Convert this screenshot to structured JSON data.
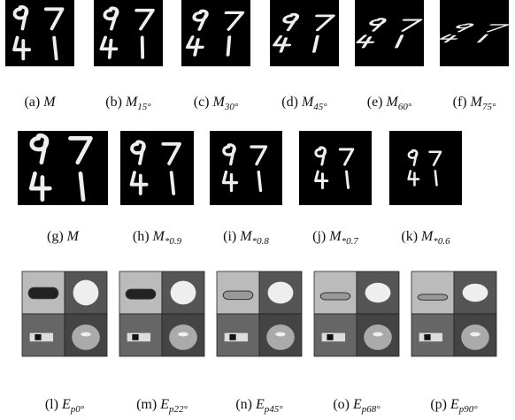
{
  "figure": {
    "rows": [
      {
        "panels": [
          {
            "label": "(a)",
            "symbol": "M"
          },
          {
            "label": "(b)",
            "symbol": "M",
            "sub": "15°"
          },
          {
            "label": "(c)",
            "symbol": "M",
            "sub": "30°"
          },
          {
            "label": "(d)",
            "symbol": "M",
            "sub": "45°"
          },
          {
            "label": "(e)",
            "symbol": "M",
            "sub": "60°"
          },
          {
            "label": "(f)",
            "symbol": "M",
            "sub": "75°"
          }
        ]
      },
      {
        "panels": [
          {
            "label": "(g)",
            "symbol": "M"
          },
          {
            "label": "(h)",
            "symbol": "M",
            "sub": "*0.9"
          },
          {
            "label": "(i)",
            "symbol": "M",
            "sub": "*0.8"
          },
          {
            "label": "(j)",
            "symbol": "M",
            "sub": "*0.7"
          },
          {
            "label": "(k)",
            "symbol": "M",
            "sub": "*0.6"
          }
        ]
      },
      {
        "panels": [
          {
            "label": "(l)",
            "symbol": "E",
            "sub": "p0°"
          },
          {
            "label": "(m)",
            "symbol": "E",
            "sub": "p22°"
          },
          {
            "label": "(n)",
            "symbol": "E",
            "sub": "p45°"
          },
          {
            "label": "(o)",
            "symbol": "E",
            "sub": "p68°"
          },
          {
            "label": "(p)",
            "symbol": "E",
            "sub": "p90°"
          }
        ]
      }
    ]
  }
}
